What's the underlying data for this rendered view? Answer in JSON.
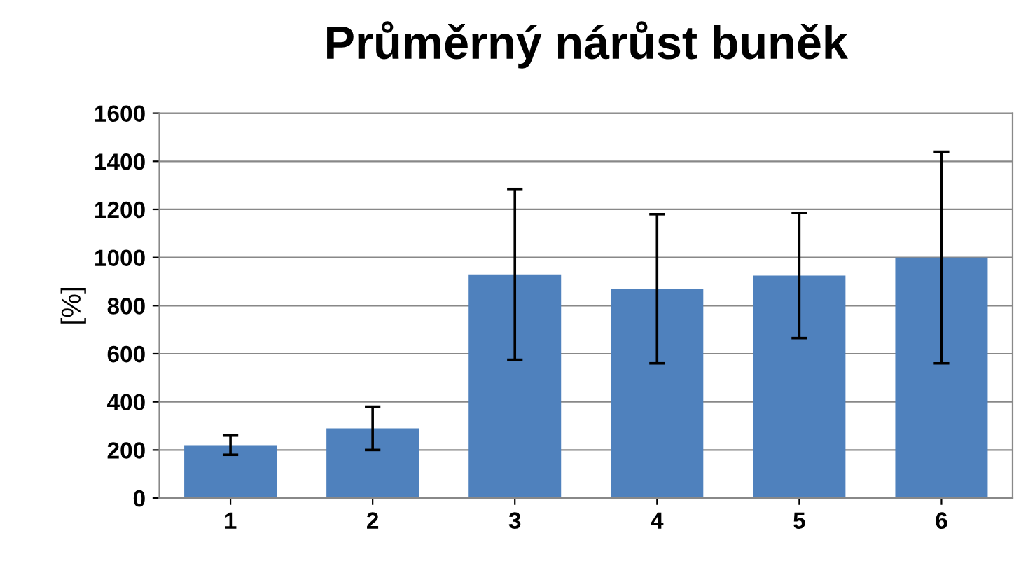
{
  "chart_data": {
    "type": "bar",
    "title": "Průměrný nárůst buněk",
    "ylabel": "[%]",
    "categories": [
      "1",
      "2",
      "3",
      "4",
      "5",
      "6"
    ],
    "values": [
      220,
      290,
      930,
      870,
      925,
      1000
    ],
    "errors": [
      40,
      90,
      355,
      310,
      260,
      440
    ],
    "color": "#4f81bd",
    "ylim": [
      0,
      1600
    ],
    "yticks": [
      0,
      200,
      400,
      600,
      800,
      1000,
      1200,
      1400,
      1600
    ],
    "grid": "y",
    "legend": false
  }
}
